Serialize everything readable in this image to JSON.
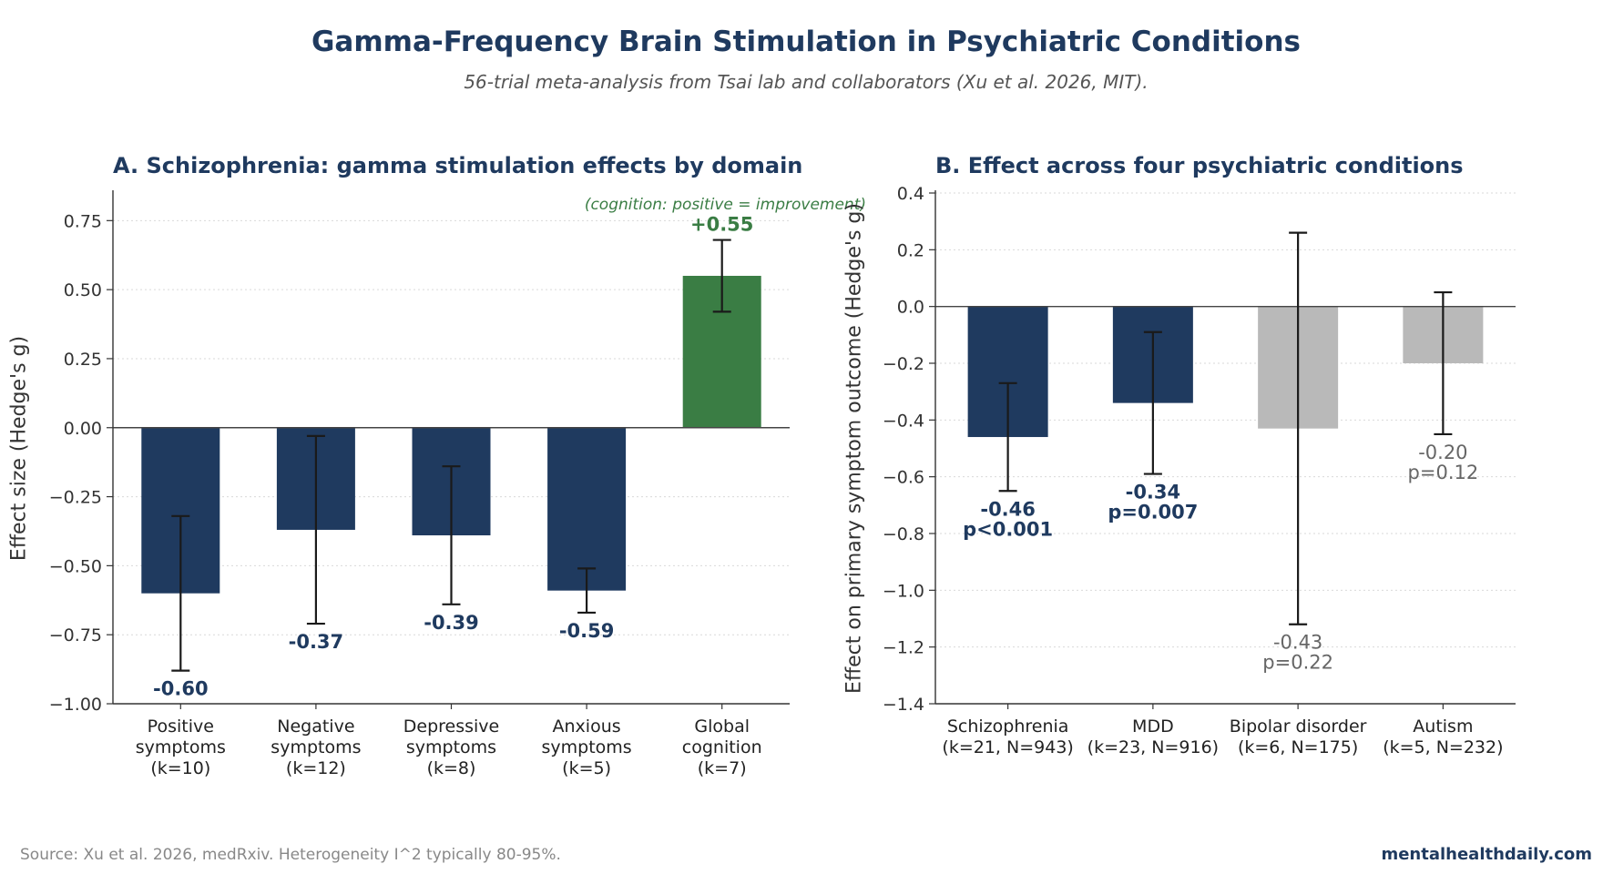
{
  "title": "Gamma-Frequency Brain Stimulation in Psychiatric Conditions",
  "subtitle": "56-trial meta-analysis from Tsai lab and collaborators (Xu et al. 2026, MIT).",
  "footer": {
    "source": "Source: Xu et al. 2026, medRxiv. Heterogeneity I^2 typically 80-95%.",
    "brand": "mentalhealthdaily.com"
  },
  "colors": {
    "navy": "#1f3a5f",
    "green": "#3a7d44",
    "gray": "#b9b9b9",
    "gray_text": "#666666"
  },
  "chart_data": [
    {
      "type": "bar",
      "title": "A. Schizophrenia: gamma stimulation effects by domain",
      "ylabel": "Effect size (Hedge's g)",
      "xlabel": "",
      "ylim": [
        -1.0,
        0.85
      ],
      "yticks": [
        0.75,
        0.5,
        0.25,
        0.0,
        -0.25,
        -0.5,
        -0.75,
        -1.0
      ],
      "ytick_labels": [
        "0.75",
        "0.50",
        "0.25",
        "0.00",
        "−0.25",
        "−0.50",
        "−0.75",
        "−1.00"
      ],
      "grid": true,
      "annotation": "(cognition: positive = improvement)",
      "categories": [
        [
          "Positive",
          "symptoms",
          "(k=10)"
        ],
        [
          "Negative",
          "symptoms",
          "(k=12)"
        ],
        [
          "Depressive",
          "symptoms",
          "(k=8)"
        ],
        [
          "Anxious",
          "symptoms",
          "(k=5)"
        ],
        [
          "Global",
          "cognition",
          "(k=7)"
        ]
      ],
      "values": [
        -0.6,
        -0.37,
        -0.39,
        -0.59,
        0.55
      ],
      "error": [
        0.28,
        0.34,
        0.25,
        0.08,
        0.13
      ],
      "labels": [
        [
          "-0.60"
        ],
        [
          "-0.37"
        ],
        [
          "-0.39"
        ],
        [
          "-0.59"
        ],
        [
          "+0.55"
        ]
      ],
      "colors": [
        "#1f3a5f",
        "#1f3a5f",
        "#1f3a5f",
        "#1f3a5f",
        "#3a7d44"
      ],
      "significant": [
        true,
        true,
        true,
        true,
        true
      ]
    },
    {
      "type": "bar",
      "title": "B. Effect across four psychiatric conditions",
      "ylabel": "Effect on primary symptom outcome (Hedge's g)",
      "xlabel": "",
      "ylim": [
        -1.4,
        0.4
      ],
      "yticks": [
        0.4,
        0.2,
        0.0,
        -0.2,
        -0.4,
        -0.6,
        -0.8,
        -1.0,
        -1.2,
        -1.4
      ],
      "ytick_labels": [
        "0.4",
        "0.2",
        "0.0",
        "−0.2",
        "−0.4",
        "−0.6",
        "−0.8",
        "−1.0",
        "−1.2",
        "−1.4"
      ],
      "grid": true,
      "categories": [
        [
          "Schizophrenia",
          "(k=21, N=943)"
        ],
        [
          "MDD",
          "(k=23, N=916)"
        ],
        [
          "Bipolar disorder",
          "(k=6, N=175)"
        ],
        [
          "Autism",
          "(k=5, N=232)"
        ]
      ],
      "values": [
        -0.46,
        -0.34,
        -0.43,
        -0.2
      ],
      "error": [
        0.19,
        0.25,
        0.69,
        0.25
      ],
      "labels": [
        [
          "-0.46",
          "p<0.001"
        ],
        [
          "-0.34",
          "p=0.007"
        ],
        [
          "-0.43",
          "p=0.22"
        ],
        [
          "-0.20",
          "p=0.12"
        ]
      ],
      "colors": [
        "#1f3a5f",
        "#1f3a5f",
        "#b9b9b9",
        "#b9b9b9"
      ],
      "significant": [
        true,
        true,
        false,
        false
      ]
    }
  ]
}
